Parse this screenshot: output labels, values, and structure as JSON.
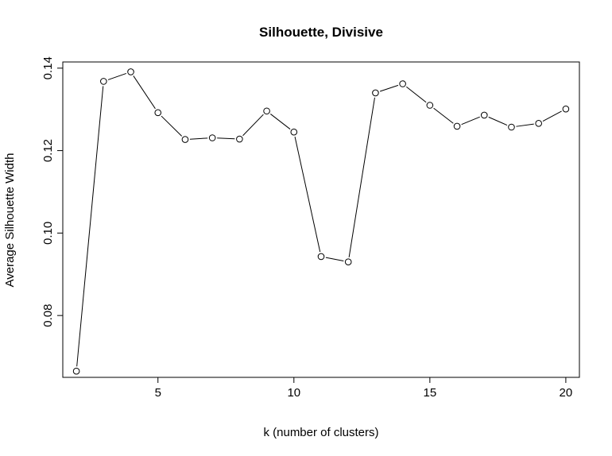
{
  "chart_data": {
    "type": "line",
    "title": "Silhouette, Divisive",
    "xlabel": "k (number of clusters)",
    "ylabel": "Average Silhouette Width",
    "x": [
      2,
      3,
      4,
      5,
      6,
      7,
      8,
      9,
      10,
      11,
      12,
      13,
      14,
      15,
      16,
      17,
      18,
      19,
      20
    ],
    "series": [
      {
        "values": [
          0.0665,
          0.1368,
          0.1391,
          0.1292,
          0.1227,
          0.1231,
          0.1228,
          0.1296,
          0.1245,
          0.0943,
          0.093,
          0.134,
          0.1362,
          0.131,
          0.1259,
          0.1286,
          0.1257,
          0.1266,
          0.1301
        ]
      }
    ],
    "xlim": [
      1.5,
      20.5
    ],
    "ylim": [
      0.065,
      0.1415
    ],
    "x_ticks": [
      5,
      10,
      15,
      20
    ],
    "x_tick_labels": [
      "5",
      "10",
      "15",
      "20"
    ],
    "y_ticks": [
      0.08,
      0.1,
      0.12,
      0.14
    ],
    "y_tick_labels": [
      "0.08",
      "0.10",
      "0.12",
      "0.14"
    ],
    "grid": false,
    "marker": "open-circle",
    "line_color": "#000000"
  }
}
